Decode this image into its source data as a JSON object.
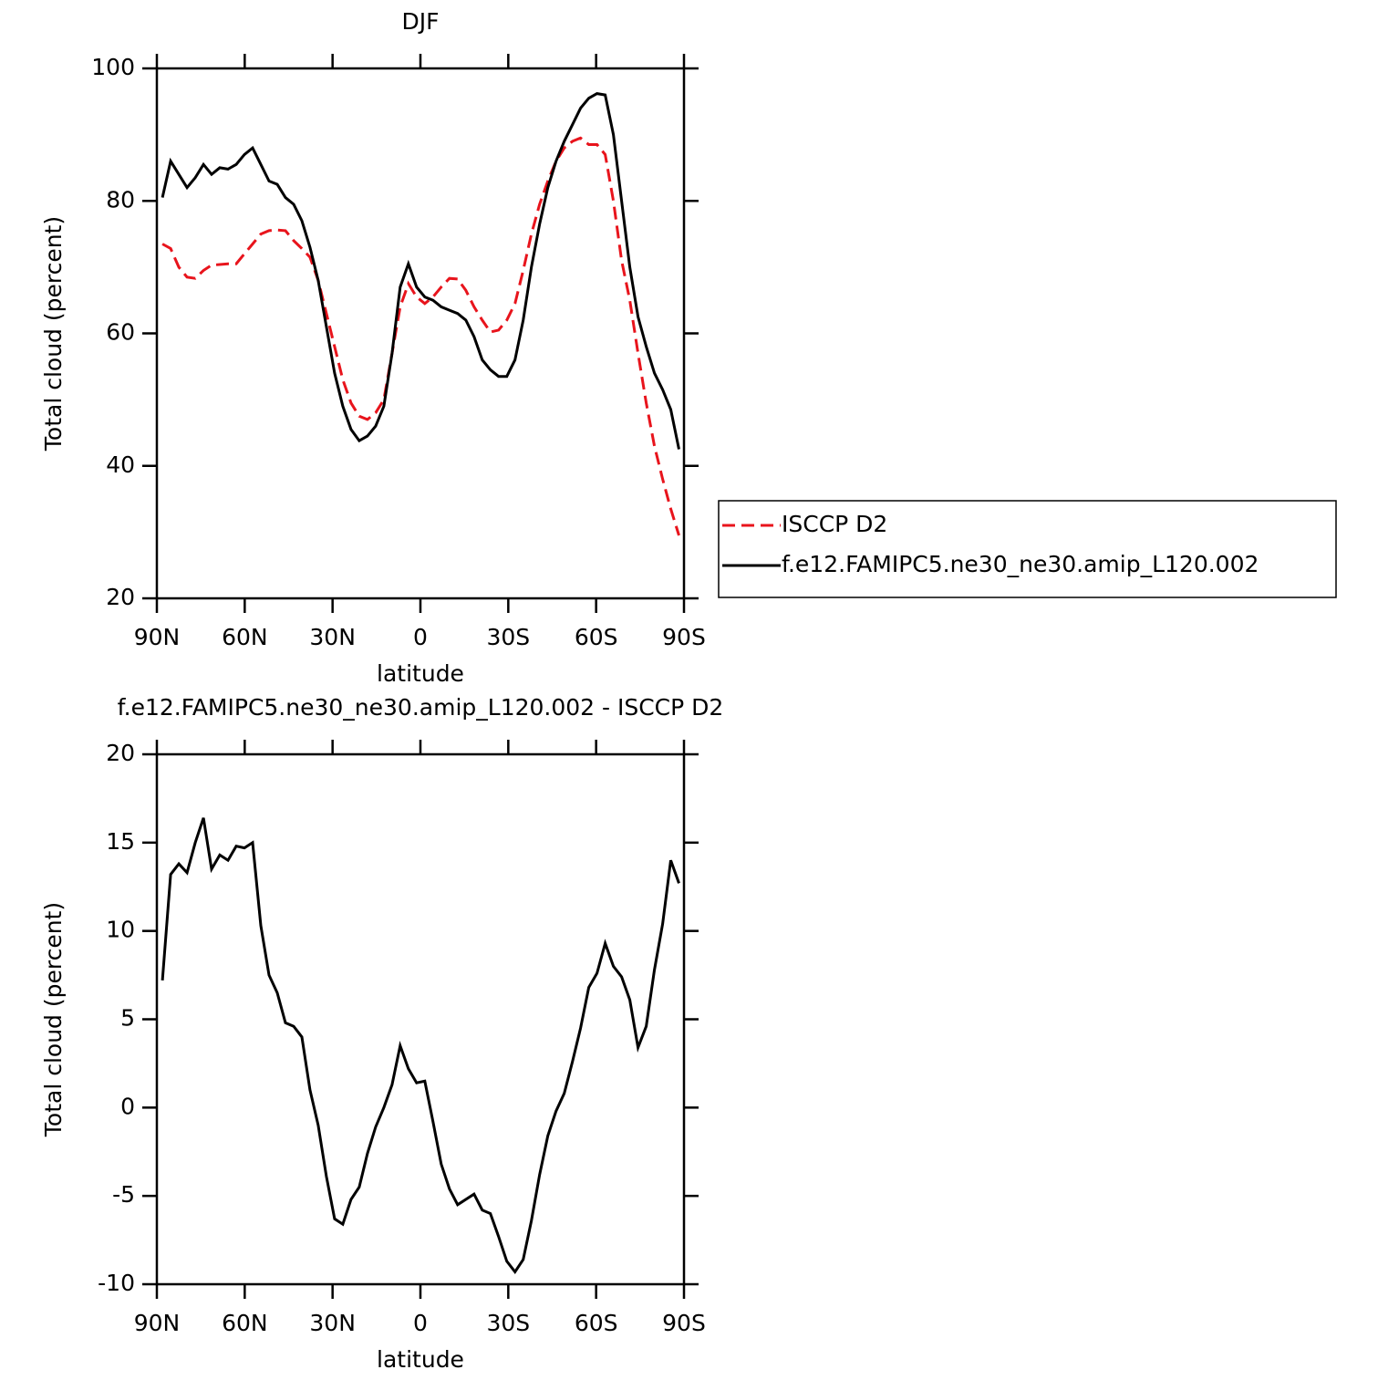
{
  "chart_data": [
    {
      "type": "line",
      "title": "DJF",
      "xlabel": "latitude",
      "ylabel": "Total cloud (percent)",
      "x": [
        88.1,
        85.3,
        82.5,
        79.7,
        76.9,
        74.1,
        71.3,
        68.5,
        65.7,
        62.9,
        60.1,
        57.3,
        54.5,
        51.7,
        48.9,
        46.1,
        43.3,
        40.5,
        37.7,
        34.9,
        32.1,
        29.3,
        26.5,
        23.7,
        20.9,
        18.1,
        15.3,
        12.5,
        9.7,
        6.9,
        4.1,
        1.3,
        -1.5,
        -4.3,
        -7.1,
        -9.9,
        -12.7,
        -15.5,
        -18.3,
        -21.1,
        -23.9,
        -26.7,
        -29.5,
        -32.3,
        -35.1,
        -37.9,
        -40.7,
        -43.5,
        -46.3,
        -49.1,
        -51.9,
        -54.7,
        -57.5,
        -60.3,
        -63.1,
        -65.9,
        -68.7,
        -71.5,
        -74.3,
        -77.1,
        -79.9,
        -82.7,
        -85.5,
        -88.3
      ],
      "series": [
        {
          "name": "ISCCP D2",
          "color": "#e8141c",
          "line_style": "dashed",
          "values": [
            73.5,
            72.8,
            70,
            68.5,
            68.3,
            69.5,
            70.3,
            70.4,
            70.5,
            70.5,
            72,
            73.5,
            75,
            75.5,
            75.6,
            75.5,
            74,
            72.8,
            71.5,
            68,
            63,
            58,
            53,
            49.5,
            47.5,
            47,
            48,
            50,
            57,
            64,
            67.5,
            65.5,
            64.5,
            65.5,
            67,
            68.3,
            68.2,
            66.5,
            64,
            62,
            60.2,
            60.5,
            62,
            64.5,
            69.5,
            75,
            79.5,
            83,
            86,
            88,
            89,
            89.5,
            88.5,
            88.5,
            87,
            80,
            71,
            65,
            57,
            49.5,
            43,
            38,
            33.5,
            29.5
          ]
        },
        {
          "name": "f.e12.FAMIPC5.ne30_ne30.amip_L120.002",
          "color": "#000000",
          "line_style": "solid",
          "values": [
            80.5,
            86,
            84,
            82,
            83.5,
            85.5,
            84,
            85,
            84.8,
            85.5,
            87,
            88,
            85.5,
            83,
            82.5,
            80.5,
            79.5,
            77,
            73,
            68,
            61,
            54,
            49,
            45.5,
            43.8,
            44.5,
            46,
            49,
            57,
            67,
            70.5,
            67,
            65.5,
            65,
            64,
            63.5,
            63,
            62,
            59.5,
            56,
            54.5,
            53.5,
            53.5,
            56,
            62,
            70,
            76.5,
            82,
            86,
            89,
            91.5,
            94,
            95.5,
            96.2,
            96,
            90,
            80,
            70,
            62.5,
            58,
            54,
            51.5,
            48.5,
            42.5
          ]
        }
      ],
      "xlim": [
        90,
        -90
      ],
      "xticks": [
        {
          "value": 90,
          "label": "90N"
        },
        {
          "value": 60,
          "label": "60N"
        },
        {
          "value": 30,
          "label": "30N"
        },
        0,
        {
          "value": -30,
          "label": "30S"
        },
        {
          "value": -60,
          "label": "60S"
        },
        {
          "value": -90,
          "label": "90S"
        }
      ],
      "ylim": [
        20,
        100
      ],
      "yticks": [
        20,
        40,
        60,
        80,
        100
      ],
      "legend": "right"
    },
    {
      "type": "line",
      "title": "f.e12.FAMIPC5.ne30_ne30.amip_L120.002 - ISCCP D2",
      "xlabel": "latitude",
      "ylabel": "Total cloud (percent)",
      "x": [
        88.1,
        85.3,
        82.5,
        79.7,
        76.9,
        74.1,
        71.3,
        68.5,
        65.7,
        62.9,
        60.1,
        57.3,
        54.5,
        51.7,
        48.9,
        46.1,
        43.3,
        40.5,
        37.7,
        34.9,
        32.1,
        29.3,
        26.5,
        23.7,
        20.9,
        18.1,
        15.3,
        12.5,
        9.7,
        6.9,
        4.1,
        1.3,
        -1.5,
        -4.3,
        -7.1,
        -9.9,
        -12.7,
        -15.5,
        -18.3,
        -21.1,
        -23.9,
        -26.7,
        -29.5,
        -32.3,
        -35.1,
        -37.9,
        -40.7,
        -43.5,
        -46.3,
        -49.1,
        -51.9,
        -54.7,
        -57.5,
        -60.3,
        -63.1,
        -65.9,
        -68.7,
        -71.5,
        -74.3,
        -77.1,
        -79.9,
        -82.7,
        -85.5,
        -88.3
      ],
      "series": [
        {
          "color": "#000000",
          "line_style": "solid",
          "values": [
            7.2,
            13.2,
            13.8,
            13.3,
            15,
            16.4,
            13.5,
            14.3,
            14,
            14.8,
            14.7,
            15,
            10.3,
            7.5,
            6.5,
            4.8,
            4.6,
            4,
            1,
            -1,
            -3.9,
            -6.3,
            -6.6,
            -5.2,
            -4.5,
            -2.6,
            -1.1,
            0,
            1.3,
            3.5,
            2.2,
            1.4,
            1.5,
            -0.8,
            -3.2,
            -4.6,
            -5.5,
            -5.2,
            -4.9,
            -5.8,
            -6,
            -7.3,
            -8.7,
            -9.3,
            -8.6,
            -6.4,
            -3.8,
            -1.6,
            -0.2,
            0.8,
            2.6,
            4.5,
            6.8,
            7.6,
            9.3,
            8,
            7.4,
            6.1,
            3.4,
            4.6,
            7.8,
            10.4,
            14,
            12.7
          ]
        }
      ],
      "xlim": [
        90,
        -90
      ],
      "xticks": [
        {
          "value": 90,
          "label": "90N"
        },
        {
          "value": 60,
          "label": "60N"
        },
        {
          "value": 30,
          "label": "30N"
        },
        0,
        {
          "value": -30,
          "label": "30S"
        },
        {
          "value": -60,
          "label": "60S"
        },
        {
          "value": -90,
          "label": "90S"
        }
      ],
      "ylim": [
        -10,
        20
      ],
      "yticks": [
        -10,
        -5,
        0,
        5,
        10,
        15,
        20
      ]
    }
  ]
}
